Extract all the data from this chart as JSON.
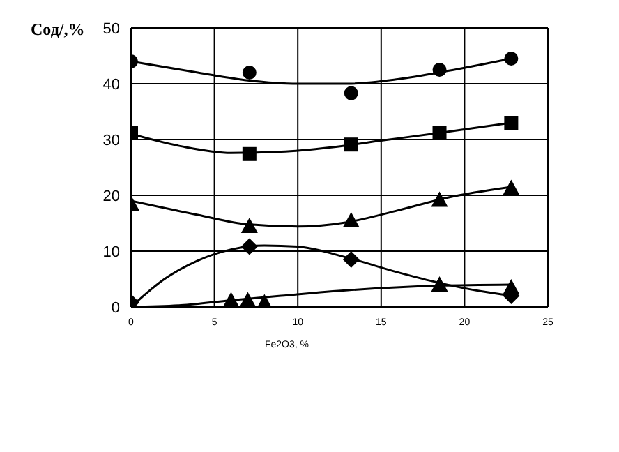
{
  "chart_data": {
    "type": "scatter",
    "xlabel": "Fe2O3, %",
    "ylabel": "Сод/,%",
    "xlim": [
      0,
      25
    ],
    "xticks": [
      0,
      5,
      10,
      15,
      20,
      25
    ],
    "ylim": [
      0,
      50
    ],
    "yticks": [
      0,
      10,
      20,
      30,
      40,
      50
    ],
    "grid": true,
    "series": [
      {
        "color": "#000000",
        "marker": "circle",
        "x": [
          0,
          7.1,
          13.2,
          18.5,
          22.8
        ],
        "values": [
          44,
          42,
          38.3,
          42.5,
          44.5
        ]
      },
      {
        "type": "line",
        "marker": "none",
        "color": "#000000",
        "x": [
          0,
          4,
          7,
          10,
          13,
          16,
          19,
          22.8
        ],
        "values": [
          44,
          42,
          40.6,
          40,
          40,
          40.8,
          42.3,
          44.5
        ]
      },
      {
        "color": "#000000",
        "marker": "square",
        "x": [
          0,
          7.1,
          13.2,
          18.5,
          22.8
        ],
        "values": [
          31.2,
          27.4,
          29.1,
          31.2,
          33
        ]
      },
      {
        "type": "line",
        "marker": "none",
        "color": "#000000",
        "x": [
          0,
          3,
          6,
          9,
          12,
          15,
          18.5,
          22.8
        ],
        "values": [
          31,
          28.8,
          27.6,
          27.8,
          28.6,
          29.8,
          31.2,
          33
        ]
      },
      {
        "color": "#000000",
        "marker": "triangle",
        "x": [
          0,
          7.1,
          13.2,
          18.5,
          22.8
        ],
        "values": [
          18.5,
          14.5,
          15.5,
          19.2,
          21.3
        ]
      },
      {
        "type": "line",
        "marker": "none",
        "color": "#000000",
        "x": [
          0,
          4,
          7,
          10,
          13,
          16,
          19,
          22.8
        ],
        "values": [
          19,
          16.5,
          14.8,
          14.4,
          15.2,
          17.3,
          19.6,
          21.5
        ]
      },
      {
        "color": "#000000",
        "marker": "diamond",
        "x": [
          0,
          7.1,
          13.2,
          18.5,
          22.8
        ],
        "values": [
          0.8,
          10.8,
          8.5,
          null,
          2
        ]
      },
      {
        "type": "line",
        "marker": "none",
        "color": "#000000",
        "x": [
          0,
          2,
          4,
          6,
          8,
          10,
          13,
          16,
          18.5,
          21,
          22.8
        ],
        "values": [
          0,
          5,
          8.3,
          10.3,
          11,
          10.8,
          8.8,
          6.2,
          4.3,
          2.8,
          2
        ]
      },
      {
        "color": "#000000",
        "marker": "triangle",
        "x": [
          6,
          7,
          8,
          18.5,
          22.8
        ],
        "values": [
          1.2,
          1.2,
          0.8,
          4,
          3.5
        ]
      },
      {
        "type": "line",
        "marker": "none",
        "color": "#000000",
        "x": [
          0,
          3,
          6,
          9,
          13,
          18.5,
          22.8
        ],
        "values": [
          0,
          0.3,
          1.2,
          2,
          3,
          3.8,
          4
        ]
      }
    ]
  }
}
